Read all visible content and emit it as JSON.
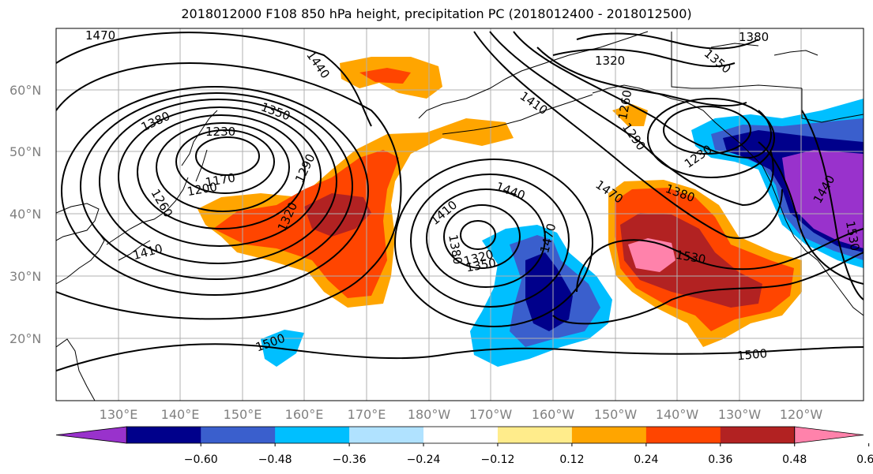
{
  "title": "2018012000 F108 850 hPa height, precipitation PC (2018012400 - 2018012500)",
  "lat_labels": [
    "60°N",
    "50°N",
    "40°N",
    "30°N",
    "20°N"
  ],
  "lon_labels": [
    "130°E",
    "140°E",
    "150°E",
    "160°E",
    "170°E",
    "180°W",
    "170°W",
    "160°W",
    "150°W",
    "140°W",
    "130°W",
    "120°W"
  ],
  "colorbar": {
    "ticks": [
      "−0.60",
      "−0.48",
      "−0.36",
      "−0.24",
      "−0.12",
      "0.12",
      "0.24",
      "0.36",
      "0.48",
      "0.60"
    ],
    "colors": [
      "#9932cc",
      "#00008b",
      "#3a5fcd",
      "#00bfff",
      "#b0e2ff",
      "#ffffff",
      "#ffec8b",
      "#ffa500",
      "#ff4500",
      "#b22222",
      "#ff82ab"
    ]
  },
  "contour_labels": [
    "1470",
    "1440",
    "1380",
    "1350",
    "1230",
    "1170",
    "1200",
    "1260",
    "1290",
    "1320",
    "1410",
    "1440",
    "1410",
    "1380",
    "1320",
    "1350",
    "1470",
    "1500",
    "1380",
    "1320",
    "1350",
    "1260",
    "1290",
    "1230",
    "1410",
    "1470",
    "1380",
    "1530",
    "1500",
    "1440",
    "1530"
  ]
}
